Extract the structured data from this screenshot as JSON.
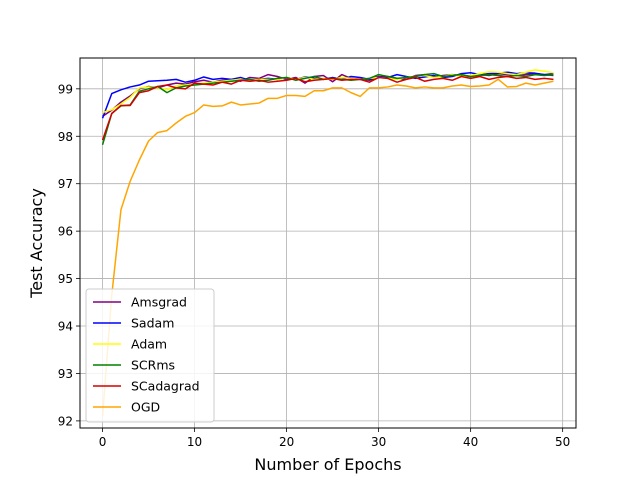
{
  "chart_data": {
    "type": "line",
    "xlabel": "Number of Epochs",
    "ylabel": "Test Accuracy",
    "xlim": [
      -2.45,
      51.45
    ],
    "ylim": [
      91.85,
      99.65
    ],
    "xticks": [
      0,
      10,
      20,
      30,
      40,
      50
    ],
    "yticks": [
      92,
      93,
      94,
      95,
      96,
      97,
      98,
      99
    ],
    "grid": true,
    "legend_position": "lower-left",
    "x": [
      0,
      1,
      2,
      3,
      4,
      5,
      6,
      7,
      8,
      9,
      10,
      11,
      12,
      13,
      14,
      15,
      16,
      17,
      18,
      19,
      20,
      21,
      22,
      23,
      24,
      25,
      26,
      27,
      28,
      29,
      30,
      31,
      32,
      33,
      34,
      35,
      36,
      37,
      38,
      39,
      40,
      41,
      42,
      43,
      44,
      45,
      46,
      47,
      48,
      49
    ],
    "series": [
      {
        "name": "Amsgrad",
        "color": "#800080",
        "values": [
          98.42,
          98.55,
          98.72,
          98.85,
          99.0,
          99.05,
          99.02,
          99.08,
          99.12,
          99.1,
          99.15,
          99.18,
          99.14,
          99.18,
          99.2,
          99.16,
          99.24,
          99.22,
          99.3,
          99.26,
          99.2,
          99.24,
          99.12,
          99.26,
          99.28,
          99.15,
          99.3,
          99.22,
          99.2,
          99.18,
          99.24,
          99.26,
          99.22,
          99.2,
          99.28,
          99.3,
          99.25,
          99.28,
          99.3,
          99.28,
          99.26,
          99.3,
          99.28,
          99.32,
          99.3,
          99.28,
          99.3,
          99.32,
          99.3,
          99.28
        ]
      },
      {
        "name": "Sadam",
        "color": "#0000ff",
        "values": [
          98.38,
          98.9,
          98.98,
          99.04,
          99.08,
          99.16,
          99.17,
          99.18,
          99.2,
          99.14,
          99.18,
          99.25,
          99.2,
          99.22,
          99.2,
          99.24,
          99.18,
          99.2,
          99.22,
          99.2,
          99.24,
          99.2,
          99.25,
          99.22,
          99.2,
          99.24,
          99.2,
          99.26,
          99.24,
          99.2,
          99.26,
          99.24,
          99.3,
          99.26,
          99.22,
          99.25,
          99.28,
          99.24,
          99.26,
          99.32,
          99.34,
          99.3,
          99.32,
          99.33,
          99.35,
          99.32,
          99.34,
          99.33,
          99.3,
          99.32
        ]
      },
      {
        "name": "Adam",
        "color": "#ffff00",
        "values": [
          98.5,
          98.56,
          98.68,
          98.82,
          99.02,
          99.04,
          99.02,
          98.98,
          99.06,
          99.08,
          99.1,
          99.12,
          99.14,
          99.16,
          99.18,
          99.2,
          99.18,
          99.2,
          99.2,
          99.2,
          99.24,
          99.2,
          99.24,
          99.2,
          99.22,
          99.2,
          99.24,
          99.22,
          99.2,
          99.22,
          99.24,
          99.22,
          99.2,
          99.24,
          99.26,
          99.28,
          99.24,
          99.26,
          99.3,
          99.26,
          99.28,
          99.32,
          99.36,
          99.35,
          99.32,
          99.3,
          99.35,
          99.4,
          99.37,
          99.34
        ]
      },
      {
        "name": "SCRms",
        "color": "#008000",
        "values": [
          97.82,
          98.48,
          98.64,
          98.66,
          98.95,
          99.0,
          99.05,
          98.92,
          99.02,
          99.06,
          99.08,
          99.1,
          99.12,
          99.14,
          99.16,
          99.18,
          99.2,
          99.16,
          99.18,
          99.22,
          99.24,
          99.18,
          99.22,
          99.26,
          99.2,
          99.22,
          99.2,
          99.18,
          99.2,
          99.22,
          99.3,
          99.26,
          99.22,
          99.24,
          99.26,
          99.3,
          99.32,
          99.26,
          99.28,
          99.3,
          99.26,
          99.28,
          99.3,
          99.28,
          99.26,
          99.28,
          99.26,
          99.3,
          99.28,
          99.3
        ]
      },
      {
        "name": "SCadagrad",
        "color": "#d40000",
        "values": [
          97.92,
          98.48,
          98.65,
          98.65,
          98.92,
          98.96,
          99.05,
          99.08,
          99.02,
          99.0,
          99.12,
          99.1,
          99.08,
          99.14,
          99.1,
          99.18,
          99.16,
          99.18,
          99.14,
          99.16,
          99.18,
          99.22,
          99.15,
          99.18,
          99.2,
          99.22,
          99.18,
          99.2,
          99.2,
          99.14,
          99.24,
          99.22,
          99.14,
          99.2,
          99.24,
          99.16,
          99.2,
          99.22,
          99.18,
          99.26,
          99.22,
          99.26,
          99.2,
          99.24,
          99.26,
          99.22,
          99.24,
          99.2,
          99.22,
          99.2
        ]
      },
      {
        "name": "OGD",
        "color": "#ffa500",
        "values": [
          92.1,
          94.65,
          96.45,
          97.05,
          97.5,
          97.9,
          98.08,
          98.12,
          98.28,
          98.42,
          98.5,
          98.66,
          98.63,
          98.64,
          98.72,
          98.66,
          98.68,
          98.7,
          98.8,
          98.8,
          98.86,
          98.86,
          98.84,
          98.96,
          98.96,
          99.02,
          99.02,
          98.92,
          98.84,
          99.02,
          99.02,
          99.04,
          99.08,
          99.06,
          99.02,
          99.04,
          99.02,
          99.02,
          99.06,
          99.08,
          99.05,
          99.06,
          99.08,
          99.2,
          99.04,
          99.05,
          99.12,
          99.08,
          99.12,
          99.16
        ]
      }
    ]
  }
}
